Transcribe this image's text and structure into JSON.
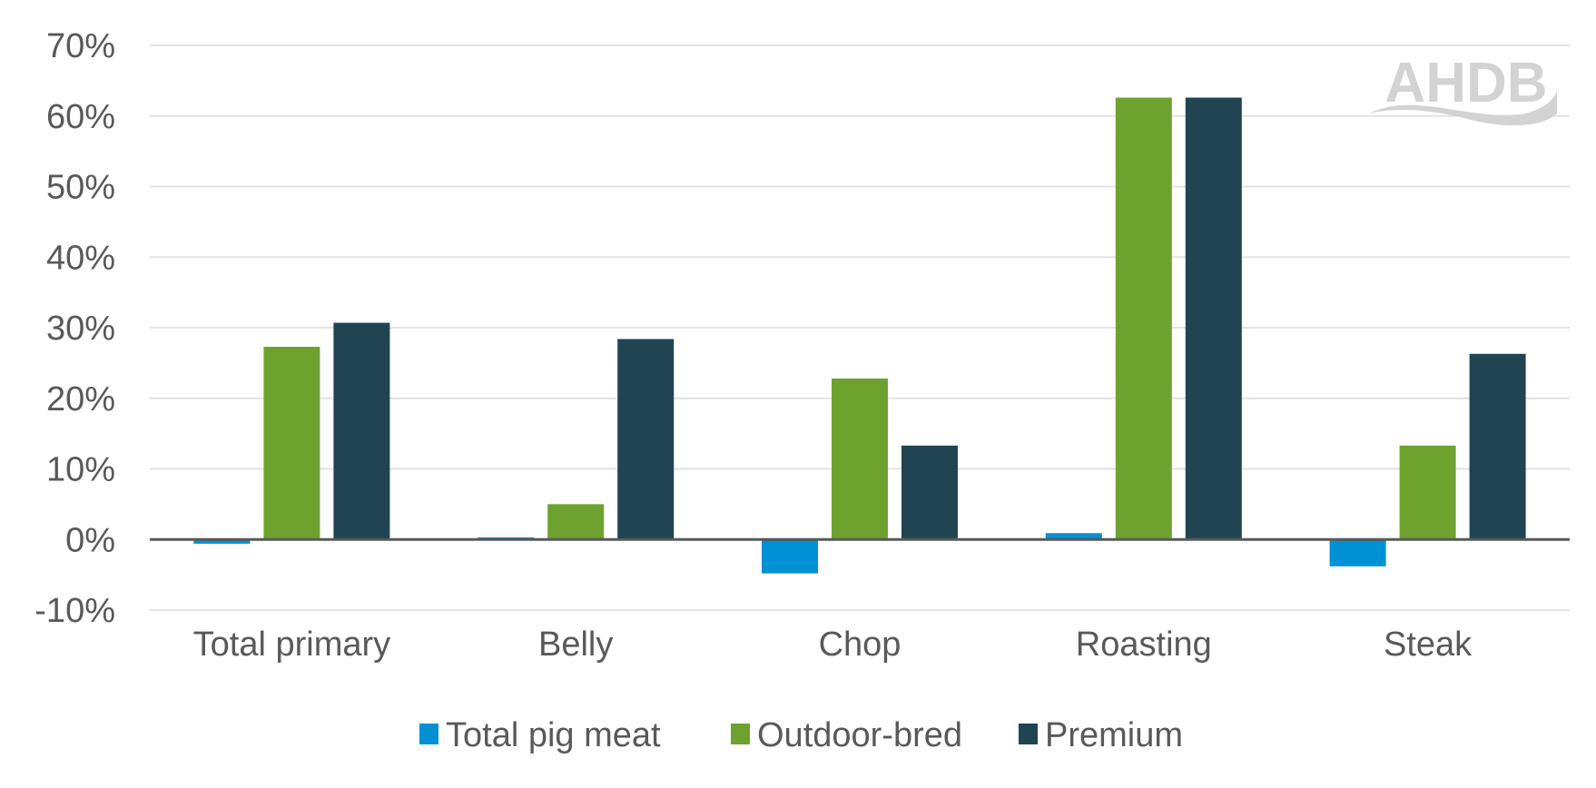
{
  "chart_data": {
    "type": "bar",
    "categories": [
      "Total primary",
      "Belly",
      "Chop",
      "Roasting",
      "Steak"
    ],
    "series": [
      {
        "name": "Total pig meat",
        "color": "#0090D4",
        "values": [
          -0.6,
          0.3,
          -4.8,
          0.9,
          -3.8
        ]
      },
      {
        "name": "Outdoor-bred",
        "color": "#6EA22F",
        "values": [
          27.3,
          5.0,
          22.8,
          62.6,
          13.3
        ]
      },
      {
        "name": "Premium",
        "color": "#204452",
        "values": [
          30.7,
          28.4,
          13.3,
          62.6,
          26.3
        ]
      }
    ],
    "ylim": [
      -10,
      70
    ],
    "yticks": [
      -10,
      0,
      10,
      20,
      30,
      40,
      50,
      60,
      70
    ],
    "ytick_format": "%",
    "grid": true,
    "legend": "bottom",
    "title": "",
    "xlabel": "",
    "ylabel": ""
  },
  "logo": {
    "text": "AHDB"
  }
}
